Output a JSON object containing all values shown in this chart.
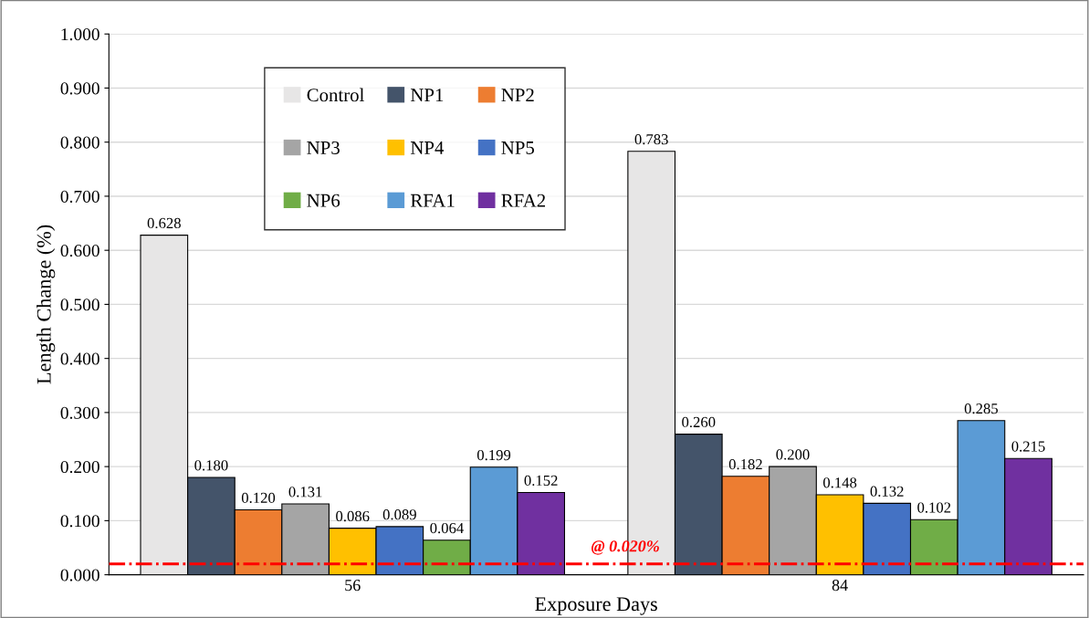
{
  "chart_data": {
    "type": "bar",
    "xlabel": "Exposure Days",
    "ylabel": "Length Change (%)",
    "categories": [
      "56",
      "84"
    ],
    "series": [
      {
        "name": "Control",
        "color": "#e7e6e6",
        "values": [
          0.628,
          0.783
        ],
        "value_labels": [
          "0.628",
          "0.783"
        ]
      },
      {
        "name": "NP1",
        "color": "#44546a",
        "values": [
          0.18,
          0.26
        ],
        "value_labels": [
          "0.180",
          "0.260"
        ]
      },
      {
        "name": "NP2",
        "color": "#ed7d31",
        "values": [
          0.12,
          0.182
        ],
        "value_labels": [
          "0.120",
          "0.182"
        ]
      },
      {
        "name": "NP3",
        "color": "#a5a5a5",
        "values": [
          0.131,
          0.2
        ],
        "value_labels": [
          "0.131",
          "0.200"
        ]
      },
      {
        "name": "NP4",
        "color": "#ffc000",
        "values": [
          0.086,
          0.148
        ],
        "value_labels": [
          "0.086",
          "0.148"
        ]
      },
      {
        "name": "NP5",
        "color": "#4472c4",
        "values": [
          0.089,
          0.132
        ],
        "value_labels": [
          "0.089",
          "0.132"
        ]
      },
      {
        "name": "NP6",
        "color": "#70ad47",
        "values": [
          0.064,
          0.102
        ],
        "value_labels": [
          "0.064",
          "0.102"
        ]
      },
      {
        "name": "RFA1",
        "color": "#5b9bd5",
        "values": [
          0.199,
          0.285
        ],
        "value_labels": [
          "0.199",
          "0.285"
        ]
      },
      {
        "name": "RFA2",
        "color": "#7030a0",
        "values": [
          0.152,
          0.215
        ],
        "value_labels": [
          "0.152",
          "0.215"
        ]
      }
    ],
    "ylim": [
      0,
      1
    ],
    "yticks": [
      {
        "value": 0,
        "label": "0.000"
      },
      {
        "value": 0.1,
        "label": "0.100"
      },
      {
        "value": 0.2,
        "label": "0.200"
      },
      {
        "value": 0.3,
        "label": "0.300"
      },
      {
        "value": 0.4,
        "label": "0.400"
      },
      {
        "value": 0.5,
        "label": "0.500"
      },
      {
        "value": 0.6,
        "label": "0.600"
      },
      {
        "value": 0.7,
        "label": "0.700"
      },
      {
        "value": 0.8,
        "label": "0.800"
      },
      {
        "value": 0.9,
        "label": "0.900"
      },
      {
        "value": 1,
        "label": "1.000"
      }
    ],
    "ref_lines": [
      {
        "axis": "y",
        "value": 0.02,
        "label": "@ 0.020%",
        "color": "#ff0000",
        "line_style": "dashdot"
      }
    ],
    "grid": "y",
    "legend": "top left"
  }
}
